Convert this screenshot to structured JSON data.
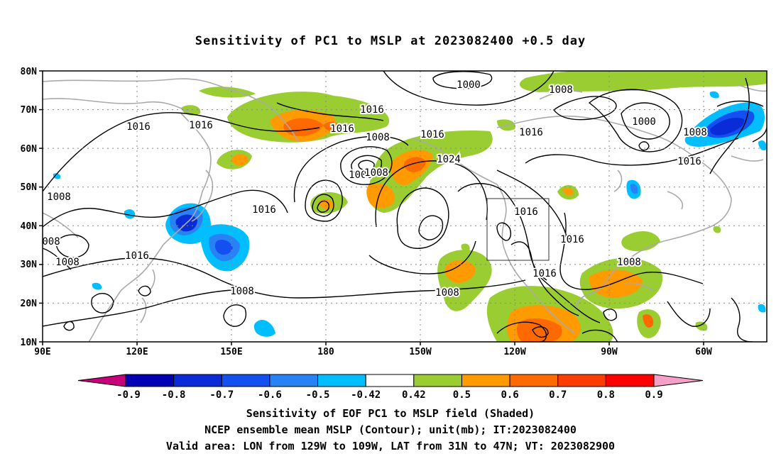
{
  "title": "Sensitivity of PC1 to MSLP at 2023082400 +0.5 day",
  "lat_labels": [
    "80N",
    "70N",
    "60N",
    "50N",
    "40N",
    "30N",
    "20N",
    "10N"
  ],
  "lon_labels": [
    "90E",
    "120E",
    "150E",
    "180",
    "150W",
    "120W",
    "90W",
    "60W"
  ],
  "contour_labels": [
    "1000",
    "1008",
    "1016",
    "1016",
    "1016",
    "1008",
    "1000",
    "1016",
    "1024",
    "1016",
    "1008",
    "1016",
    "1000",
    "1008",
    "1016",
    "1016",
    "1016",
    "1008",
    "1016",
    "1016",
    "1008",
    "1008",
    "1008",
    "1008",
    "1016",
    "008"
  ],
  "colorbar": {
    "labels": [
      "-0.9",
      "-0.8",
      "-0.7",
      "-0.6",
      "-0.5",
      "-0.42",
      "0.42",
      "0.5",
      "0.6",
      "0.7",
      "0.8",
      "0.9"
    ],
    "colors": [
      "#c8007a",
      "#0000b4",
      "#0a2cd8",
      "#1450f0",
      "#2882f5",
      "#00beff",
      "#ffffff",
      "#9acd32",
      "#ff9a00",
      "#ff6a00",
      "#ff3c00",
      "#ff0000",
      "#f5a0c8"
    ]
  },
  "captions": {
    "line1": "Sensitivity of EOF PC1 to MSLP field (Shaded)",
    "line2": "NCEP ensemble mean MSLP (Contour); unit(mb); IT:2023082400",
    "line3": "Valid area: LON from 129W to 109W, LAT from 31N to 47N; VT: 2023082900"
  }
}
